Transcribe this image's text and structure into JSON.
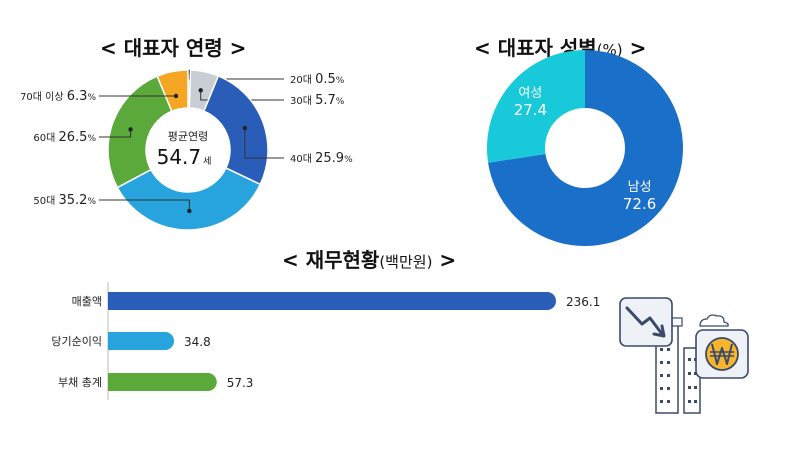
{
  "titles": {
    "age": "< 대표자 연령 >",
    "gender": "< 대표자 성별",
    "gender_unit": "(%)",
    "gender_close": " >",
    "finance": "< 재무현황",
    "finance_unit": "(백만원)",
    "finance_close": " >"
  },
  "chart_data": [
    {
      "type": "pie",
      "title": "< 대표자 연령 >",
      "center_label": "평균연령",
      "center_value": "54.7",
      "center_unit": "세",
      "unit": "%",
      "slices": [
        {
          "label": "20대",
          "value": 0.5,
          "color": "#b3b3b3"
        },
        {
          "label": "30대",
          "value": 5.7,
          "color": "#c9cdd4"
        },
        {
          "label": "40대",
          "value": 25.9,
          "color": "#2a5db8"
        },
        {
          "label": "50대",
          "value": 35.2,
          "color": "#27a4dd"
        },
        {
          "label": "60대",
          "value": 26.5,
          "color": "#5aa93a"
        },
        {
          "label": "70대 이상",
          "value": 6.3,
          "color": "#f5a623"
        }
      ]
    },
    {
      "type": "pie",
      "title": "< 대표자 성별(%) >",
      "slices": [
        {
          "label": "남성",
          "value": 72.6,
          "color": "#1a6fc9"
        },
        {
          "label": "여성",
          "value": 27.4,
          "color": "#18c9d9"
        }
      ]
    },
    {
      "type": "bar",
      "orientation": "horizontal",
      "title": "< 재무현황(백만원) >",
      "categories": [
        "매출액",
        "당기순이익",
        "부채 총계"
      ],
      "values": [
        236.1,
        34.8,
        57.3
      ],
      "colors": [
        "#2a5db8",
        "#27a4dd",
        "#5aa93a"
      ],
      "xlim": [
        0,
        236.1
      ]
    }
  ],
  "icons": [
    "chart-trend-down-icon",
    "won-coin-icon",
    "building-icon",
    "cloud-icon"
  ]
}
